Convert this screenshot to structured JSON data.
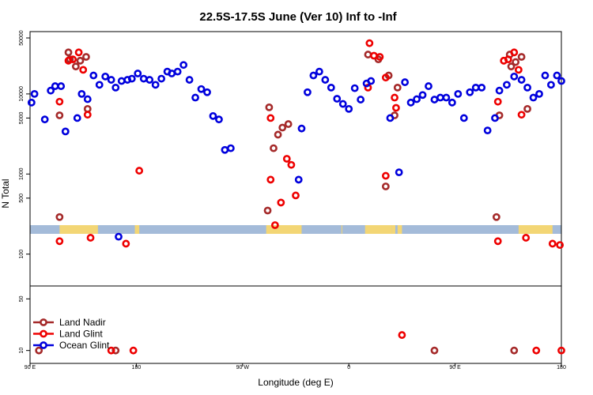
{
  "chart_data": {
    "type": "scatter",
    "title": "22.5S-17.5S June (Ver 10)   Inf to -Inf",
    "xlabel": "Longitude (deg E)",
    "ylabel": "N Total",
    "x_range": [
      90,
      450
    ],
    "x_ticks": [
      {
        "value": 90,
        "label": "90 E"
      },
      {
        "value": 162,
        "label": "180"
      },
      {
        "value": 234,
        "label": "90 W"
      },
      {
        "value": 306,
        "label": "0"
      },
      {
        "value": 378,
        "label": "90 E"
      },
      {
        "value": 450,
        "label": "180"
      }
    ],
    "upper_panel": {
      "scale": "log",
      "ylim": [
        40,
        60000
      ],
      "y_ticks": [
        {
          "value": 100,
          "label": "100"
        },
        {
          "value": 500,
          "label": "500"
        },
        {
          "value": 1000,
          "label": "1000"
        },
        {
          "value": 5000,
          "label": "5000"
        },
        {
          "value": 10000,
          "label": "10000"
        },
        {
          "value": 50000,
          "label": "50000"
        }
      ],
      "map_strip": {
        "ocean_color": "#a4bbd9",
        "land_color": "#f3d675",
        "land_ranges": [
          [
            110,
            136
          ],
          [
            161,
            164
          ],
          [
            250,
            274
          ],
          [
            301,
            301.5
          ],
          [
            317,
            335
          ],
          [
            339,
            342
          ],
          [
            335,
            337.5
          ],
          [
            421,
            444
          ]
        ]
      }
    },
    "lower_panel": {
      "scale": "linear",
      "ylim": [
        0,
        60
      ],
      "y_ticks": [
        {
          "value": 10,
          "label": "10"
        },
        {
          "value": 50,
          "label": "50"
        }
      ]
    },
    "series": [
      {
        "name": "Land Nadir",
        "color": "#a52a2a",
        "points": [
          [
            110,
            5400
          ],
          [
            110,
            290
          ],
          [
            116,
            33000
          ],
          [
            117,
            27000
          ],
          [
            121,
            22000
          ],
          [
            124,
            26000
          ],
          [
            128,
            29000
          ],
          [
            129,
            6500
          ],
          [
            251,
            350
          ],
          [
            252,
            6800
          ],
          [
            255,
            2100
          ],
          [
            258,
            3100
          ],
          [
            261,
            3800
          ],
          [
            265,
            4200
          ],
          [
            319,
            31000
          ],
          [
            326,
            27000
          ],
          [
            331,
            700
          ],
          [
            333,
            17000
          ],
          [
            337,
            5400
          ],
          [
            339,
            12000
          ],
          [
            406,
            290
          ],
          [
            408,
            5400
          ],
          [
            415,
            31000
          ],
          [
            416,
            22000
          ],
          [
            419,
            25000
          ],
          [
            423,
            29000
          ],
          [
            427,
            6500
          ],
          [
            96,
            10
          ],
          [
            148,
            10
          ],
          [
            364,
            10
          ],
          [
            418,
            10
          ]
        ]
      },
      {
        "name": "Land Glint",
        "color": "#ee0000",
        "points": [
          [
            110,
            8000
          ],
          [
            110,
            145
          ],
          [
            116,
            26000
          ],
          [
            119,
            27000
          ],
          [
            123,
            33000
          ],
          [
            126,
            20000
          ],
          [
            129,
            5500
          ],
          [
            131,
            160
          ],
          [
            155,
            135
          ],
          [
            164,
            1100
          ],
          [
            253,
            850
          ],
          [
            253,
            5000
          ],
          [
            256,
            230
          ],
          [
            260,
            440
          ],
          [
            264,
            1550
          ],
          [
            267,
            1300
          ],
          [
            270,
            540
          ],
          [
            319,
            12000
          ],
          [
            320,
            43000
          ],
          [
            323,
            30000
          ],
          [
            327,
            29000
          ],
          [
            331,
            16000
          ],
          [
            331,
            950
          ],
          [
            337,
            9000
          ],
          [
            338,
            6700
          ],
          [
            407,
            8000
          ],
          [
            407,
            145
          ],
          [
            411,
            26000
          ],
          [
            414,
            27000
          ],
          [
            418,
            33000
          ],
          [
            421,
            20000
          ],
          [
            423,
            5500
          ],
          [
            426,
            160
          ],
          [
            444,
            135
          ],
          [
            449,
            130
          ],
          [
            145,
            10
          ],
          [
            160,
            10
          ],
          [
            342,
            22
          ],
          [
            433,
            10
          ],
          [
            450,
            10
          ]
        ]
      },
      {
        "name": "Ocean Glint",
        "color": "#0000dd",
        "points": [
          [
            91,
            7800
          ],
          [
            93,
            10000
          ],
          [
            100,
            4800
          ],
          [
            104,
            11000
          ],
          [
            107,
            12500
          ],
          [
            111,
            12500
          ],
          [
            114,
            3400
          ],
          [
            122,
            5000
          ],
          [
            125,
            10000
          ],
          [
            129,
            8600
          ],
          [
            133,
            17000
          ],
          [
            137,
            13000
          ],
          [
            141,
            16500
          ],
          [
            145,
            15000
          ],
          [
            148,
            12000
          ],
          [
            152,
            14500
          ],
          [
            156,
            15000
          ],
          [
            159,
            15500
          ],
          [
            163,
            18000
          ],
          [
            167,
            15500
          ],
          [
            171,
            15000
          ],
          [
            175,
            13000
          ],
          [
            179,
            15500
          ],
          [
            183,
            19000
          ],
          [
            186,
            18000
          ],
          [
            190,
            19000
          ],
          [
            194,
            23000
          ],
          [
            198,
            15000
          ],
          [
            202,
            9000
          ],
          [
            206,
            11500
          ],
          [
            210,
            10500
          ],
          [
            214,
            5300
          ],
          [
            218,
            4800
          ],
          [
            222,
            2000
          ],
          [
            226,
            2100
          ],
          [
            150,
            165
          ],
          [
            272,
            850
          ],
          [
            274,
            3700
          ],
          [
            278,
            10500
          ],
          [
            282,
            17000
          ],
          [
            286,
            19000
          ],
          [
            290,
            15000
          ],
          [
            294,
            12000
          ],
          [
            298,
            8700
          ],
          [
            302,
            7500
          ],
          [
            306,
            6500
          ],
          [
            310,
            11800
          ],
          [
            314,
            8500
          ],
          [
            318,
            13500
          ],
          [
            321,
            14500
          ],
          [
            334,
            5000
          ],
          [
            340,
            1050
          ],
          [
            344,
            14000
          ],
          [
            348,
            7800
          ],
          [
            352,
            8600
          ],
          [
            356,
            9700
          ],
          [
            360,
            12500
          ],
          [
            364,
            8500
          ],
          [
            368,
            9000
          ],
          [
            372,
            9000
          ],
          [
            376,
            7800
          ],
          [
            380,
            10000
          ],
          [
            384,
            5000
          ],
          [
            388,
            10500
          ],
          [
            392,
            12000
          ],
          [
            396,
            12000
          ],
          [
            400,
            3500
          ],
          [
            405,
            5000
          ],
          [
            408,
            11000
          ],
          [
            413,
            13000
          ],
          [
            418,
            16500
          ],
          [
            423,
            15000
          ],
          [
            427,
            12000
          ],
          [
            431,
            9000
          ],
          [
            435,
            10000
          ],
          [
            439,
            17000
          ],
          [
            443,
            13000
          ],
          [
            447,
            17000
          ],
          [
            450,
            14500
          ]
        ]
      }
    ],
    "legend": {
      "position": "bottom-left",
      "entries": [
        "Land Nadir",
        "Land Glint",
        "Ocean Glint"
      ]
    }
  }
}
